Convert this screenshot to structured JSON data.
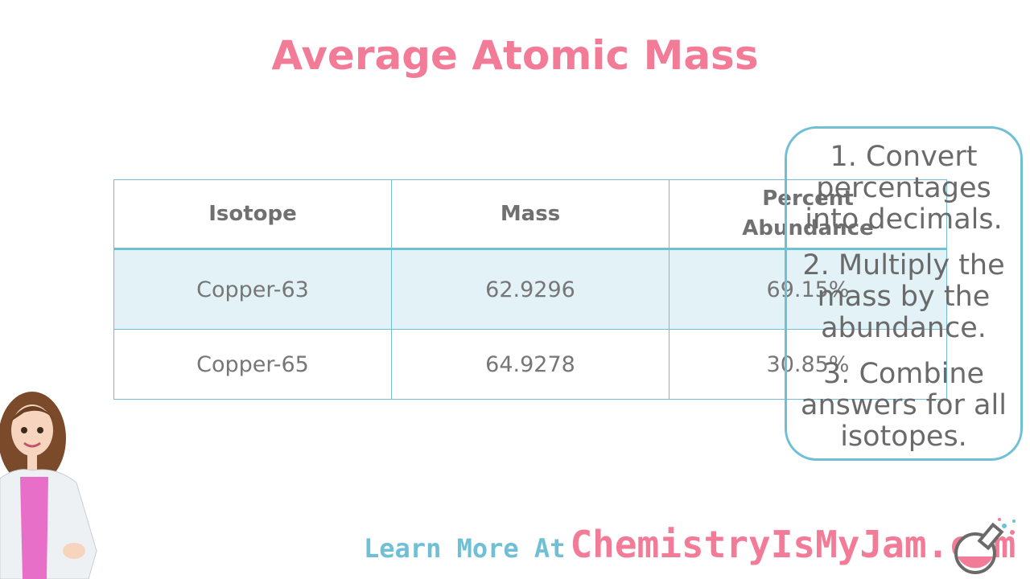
{
  "title": "Average Atomic Mass",
  "table": {
    "headers": [
      "Isotope",
      "Mass",
      "Percent Abundance"
    ],
    "rows": [
      [
        "Copper-63",
        "62.9296",
        "69.15%"
      ],
      [
        "Copper-65",
        "64.9278",
        "30.85%"
      ]
    ]
  },
  "steps": [
    "1. Convert percentages into decimals.",
    "2. Multiply the mass by the abundance.",
    "3. Combine answers for all isotopes."
  ],
  "footer": {
    "label": "Learn More At",
    "site": "ChemistryIsMyJam.com"
  }
}
